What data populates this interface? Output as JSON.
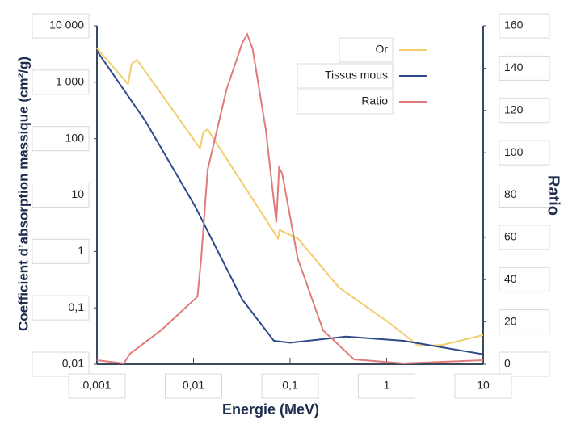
{
  "chart_data": {
    "type": "line",
    "xlabel": "Energie (MeV)",
    "ylabel": "Coefficient d’absorption massique (cm²/g)",
    "y2label": "Ratio",
    "xscale": "log",
    "yscale": "log",
    "xlim": [
      0.001,
      10
    ],
    "xticks": [
      {
        "value": 0.001,
        "label": "0,001"
      },
      {
        "value": 0.01,
        "label": "0,01"
      },
      {
        "value": 0.1,
        "label": "0,1"
      },
      1,
      10
    ],
    "ylim": [
      0.01,
      10000
    ],
    "yticks": [
      {
        "value": 0.01,
        "label": "0,01"
      },
      {
        "value": 0.1,
        "label": "0,1"
      },
      1,
      10,
      100,
      {
        "value": 1000,
        "label": "1 000"
      },
      {
        "value": 10000,
        "label": "10 000"
      }
    ],
    "y2lim": [
      0,
      160
    ],
    "y2ticks": [
      0,
      20,
      40,
      60,
      80,
      100,
      120,
      140,
      160
    ],
    "legend": "top-right",
    "series": [
      {
        "name": "Or",
        "color": "#f2cd6b",
        "x": [
          0.001,
          0.0021,
          0.00228,
          0.0026,
          0.0117,
          0.0126,
          0.014,
          0.075,
          0.078,
          0.12,
          0.32,
          1.07,
          2.15,
          3.8,
          10
        ],
        "values": [
          4000,
          930,
          2100,
          2500,
          67,
          130,
          145,
          1.7,
          2.4,
          1.7,
          0.23,
          0.054,
          0.021,
          0.022,
          0.033
        ]
      },
      {
        "name": "Tissus mous",
        "color": "#2e4a8a",
        "x": [
          0.001,
          0.0032,
          0.0104,
          0.032,
          0.068,
          0.1,
          0.38,
          1.5,
          10
        ],
        "values": [
          3600,
          200,
          6.3,
          0.14,
          0.026,
          0.024,
          0.031,
          0.026,
          0.015
        ]
      },
      {
        "name": "Ratio",
        "color": "#e07b7b",
        "axis": "y2",
        "x": [
          0.001,
          0.0019,
          0.0022,
          0.0046,
          0.011,
          0.012,
          0.014,
          0.022,
          0.032,
          0.036,
          0.041,
          0.056,
          0.072,
          0.077,
          0.083,
          0.12,
          0.22,
          0.46,
          1.5,
          10
        ],
        "values": [
          1.9,
          0.4,
          5,
          16,
          32,
          50,
          92,
          130,
          152,
          156,
          149,
          111,
          67,
          93,
          90,
          50,
          16,
          2.3,
          0.4,
          1.9
        ]
      }
    ]
  }
}
